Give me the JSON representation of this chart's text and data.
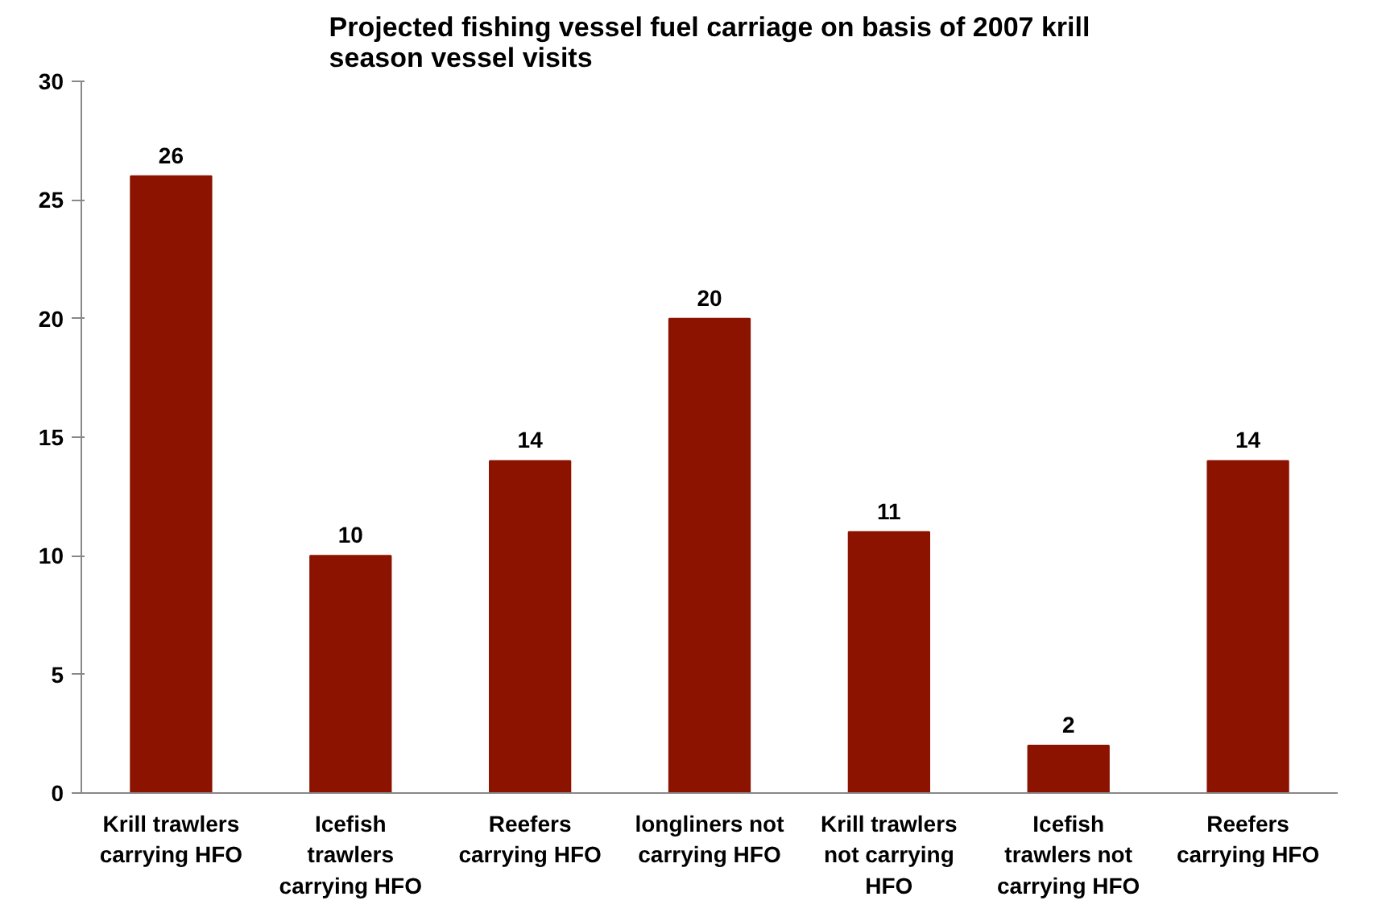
{
  "chart_data": {
    "type": "bar",
    "title": "Projected fishing vessel fuel carriage on basis of 2007 krill season vessel visits",
    "categories": [
      "Krill trawlers carrying HFO",
      "Icefish trawlers carrying HFO",
      "Reefers carrying HFO",
      "longliners not carrying HFO",
      "Krill trawlers not carrying HFO",
      "Icefish trawlers not carrying HFO",
      "Reefers carrying HFO"
    ],
    "values": [
      26,
      10,
      14,
      20,
      11,
      2,
      14
    ],
    "color": "#8c1300",
    "ylim": [
      0,
      30
    ],
    "yticks": [
      0,
      5,
      10,
      15,
      20,
      25,
      30
    ],
    "grid": false,
    "data_labels": true
  }
}
